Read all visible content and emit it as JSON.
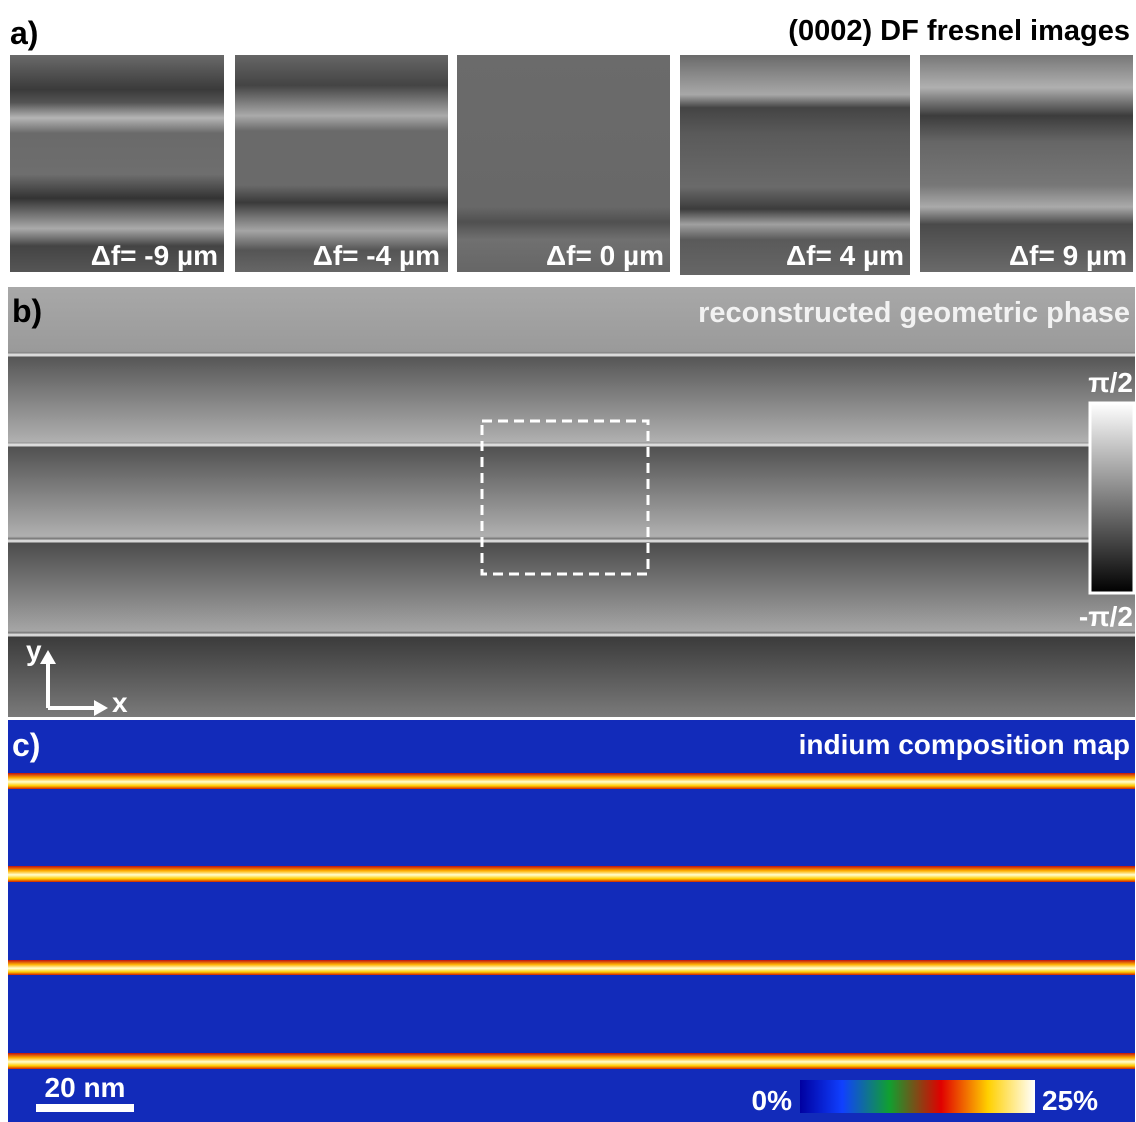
{
  "panels": [
    {
      "label": "a)",
      "title": "(0002) DF fresnel images",
      "images": [
        {
          "label": "Δf= -9 µm"
        },
        {
          "label": "Δf= -4 µm"
        },
        {
          "label": "Δf= 0 µm"
        },
        {
          "label": "Δf= 4 µm"
        },
        {
          "label": "Δf= 9 µm"
        }
      ]
    },
    {
      "label": "b)",
      "title": "reconstructed geometric phase",
      "colorbar": {
        "max": "π/2",
        "min": "-π/2"
      },
      "axes": {
        "y": "y",
        "x": "x"
      }
    },
    {
      "label": "c)",
      "title": "indium composition map",
      "colorbar": {
        "min": "0%",
        "max": "25%"
      },
      "scale_bar": "20 nm"
    }
  ]
}
